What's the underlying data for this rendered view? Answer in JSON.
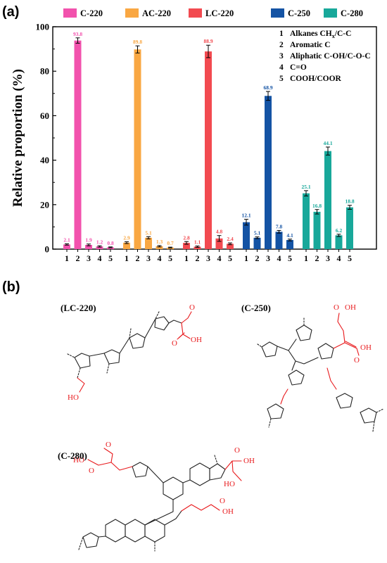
{
  "panel_a_label": "(a)",
  "panel_b_label": "(b)",
  "chart_data": {
    "type": "bar",
    "title": "",
    "xlabel": "",
    "ylabel": "Relative proportion (%)",
    "ylim": [
      0,
      100
    ],
    "yticks": [
      0,
      20,
      40,
      60,
      80,
      100
    ],
    "categories": [
      "1",
      "2",
      "3",
      "4",
      "5"
    ],
    "legend_position": "top",
    "series": [
      {
        "name": "C-220",
        "color": "#f252ad",
        "values": [
          2.1,
          93.8,
          1.9,
          1.2,
          0.8
        ],
        "errors": [
          0.3,
          1.2,
          0.4,
          0.3,
          0.2
        ],
        "labels": [
          "2.1",
          "93.8",
          "1.9",
          "1.2",
          "0.8"
        ]
      },
      {
        "name": "AC-220",
        "color": "#f9a742",
        "values": [
          2.9,
          89.8,
          5.1,
          1.3,
          0.7
        ],
        "errors": [
          0.4,
          1.6,
          0.5,
          0.3,
          0.2
        ],
        "labels": [
          "2.9",
          "89.8",
          "5.1",
          "1.3",
          "0.7"
        ]
      },
      {
        "name": "LC-220",
        "color": "#f24a50",
        "values": [
          2.8,
          1.1,
          88.9,
          4.8,
          2.4
        ],
        "errors": [
          0.6,
          0.3,
          2.8,
          1.3,
          0.4
        ],
        "labels": [
          "2.8",
          "1.1",
          "88.9",
          "4.8",
          "2.4"
        ]
      },
      {
        "name": "C-250",
        "color": "#1453a4",
        "values": [
          12.1,
          5.1,
          68.9,
          7.8,
          4.1
        ],
        "errors": [
          1.3,
          0.4,
          2.0,
          0.6,
          0.4
        ],
        "labels": [
          "12.1",
          "5.1",
          "68.9",
          "7.8",
          "4.1"
        ]
      },
      {
        "name": "C-280",
        "color": "#18a89a",
        "values": [
          25.1,
          16.8,
          44.1,
          6.2,
          18.8
        ],
        "errors": [
          1.2,
          1.0,
          1.8,
          0.5,
          0.9
        ],
        "labels": [
          "25.1",
          "16.8",
          "44.1",
          "6.2",
          "18.8"
        ]
      }
    ],
    "key": [
      {
        "num": "1",
        "text": "Alkanes CH",
        "sub": "x",
        "tail": "/C-C"
      },
      {
        "num": "2",
        "text": "Aromatic C",
        "sub": "",
        "tail": ""
      },
      {
        "num": "3",
        "text": "Aliphatic C-OH/C-O-C",
        "sub": "",
        "tail": ""
      },
      {
        "num": "4",
        "text": "C=O",
        "sub": "",
        "tail": ""
      },
      {
        "num": "5",
        "text": "COOH/COOR",
        "sub": "",
        "tail": ""
      }
    ]
  },
  "structures": {
    "lc220": {
      "title": "(LC-220)",
      "labels": [
        "O",
        "O",
        "OH",
        "HO"
      ]
    },
    "c250": {
      "title": "(C-250)",
      "labels": [
        "O",
        "OH",
        "O",
        "OH"
      ]
    },
    "c280": {
      "title": "(C-280)",
      "labels": [
        "O",
        "O",
        "HO",
        "OH",
        "O",
        "HO",
        "O",
        "OH"
      ]
    }
  }
}
